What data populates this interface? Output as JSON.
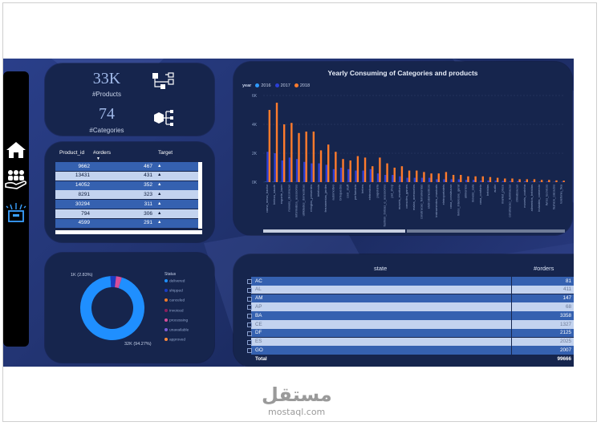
{
  "kpis": {
    "products_value": "33K",
    "products_label": "#Products",
    "categories_value": "74",
    "categories_label": "#Categories"
  },
  "nav_icons": [
    "home-icon",
    "users-hand-icon",
    "box-icon"
  ],
  "product_table": {
    "headers": [
      "Product_id",
      "#orders",
      "Target"
    ],
    "rows": [
      {
        "id": "9662",
        "orders": "467",
        "target": "▲"
      },
      {
        "id": "13431",
        "orders": "431",
        "target": "▲"
      },
      {
        "id": "14052",
        "orders": "352",
        "target": "▲"
      },
      {
        "id": "8291",
        "orders": "323",
        "target": "▲"
      },
      {
        "id": "30294",
        "orders": "311",
        "target": "▲"
      },
      {
        "id": "794",
        "orders": "306",
        "target": "▲"
      },
      {
        "id": "4599",
        "orders": "291",
        "target": "▲"
      }
    ]
  },
  "donut": {
    "label_small": "1K (2.83%)",
    "label_large": "32K (94.27%)",
    "status_title": "Status",
    "statuses": [
      {
        "name": "delivered",
        "color": "#1f8fff"
      },
      {
        "name": "shipped",
        "color": "#1a3cc2"
      },
      {
        "name": "canceled",
        "color": "#f07a2a"
      },
      {
        "name": "invoiced",
        "color": "#8a1f5c"
      },
      {
        "name": "processing",
        "color": "#d64e9a"
      },
      {
        "name": "unavailable",
        "color": "#7a5cd6"
      },
      {
        "name": "approved",
        "color": "#ff8a3a"
      }
    ]
  },
  "chart_data": {
    "type": "bar",
    "title": "Yearly Consuming of Categories and products",
    "legend_title": "year",
    "legend_position": "top-left",
    "colors": {
      "2016": "#2e9bff",
      "2017": "#2b3fd6",
      "2018": "#ff7b2c"
    },
    "y_ticks": [
      "6K",
      "4K",
      "2K",
      "0K"
    ],
    "ylim": [
      0,
      6000
    ],
    "categories": [
      "cama_mesa_banho",
      "beleza_saude",
      "esporte_lazer",
      "moveis_decoracao",
      "informatica_acessorios",
      "utilidades_domesticas",
      "relogios_presentes",
      "telefonia",
      "ferramentas_jardim",
      "automotivo",
      "brinquedos",
      "cool_stuff",
      "perfumaria",
      "bebes",
      "eletronicos",
      "papelaria",
      "fashion_bolsas_e_acessorios",
      "pet_shop",
      "moveis_escritorio",
      "consoles_games",
      "malas_acessorios",
      "construcao_ferramentas",
      "eletrodomesticos",
      "instrumentos_musicais",
      "eletroportateis",
      "casa_construcao",
      "livros_interesse_geral",
      "alimentos",
      "moveis_sala",
      "casa_conforto",
      "bebidas",
      "audio",
      "market_place",
      "construcao_iluminacao",
      "climatizacao",
      "moveis_cozinha",
      "alimentos_bebidas",
      "industria_comercio",
      "livros_tecnicos",
      "fashion_calcados",
      "telefonia_fixa"
    ],
    "series": [
      {
        "name": "2016",
        "values": [
          20,
          15,
          10,
          15,
          10,
          5,
          5,
          5,
          5,
          5,
          5,
          5,
          5,
          5,
          5,
          5,
          5,
          0,
          5,
          0,
          0,
          0,
          0,
          0,
          0,
          0,
          0,
          0,
          0,
          0,
          0,
          0,
          0,
          0,
          0,
          0,
          0,
          0,
          0,
          0,
          0
        ]
      },
      {
        "name": "2017",
        "values": [
          2100,
          2000,
          1500,
          1700,
          1600,
          1400,
          1300,
          1300,
          1200,
          900,
          1000,
          900,
          800,
          800,
          900,
          600,
          500,
          500,
          400,
          300,
          300,
          300,
          300,
          200,
          200,
          200,
          200,
          150,
          150,
          100,
          100,
          100,
          80,
          80,
          70,
          60,
          50,
          40,
          40,
          30,
          30
        ]
      },
      {
        "name": "2018",
        "values": [
          5000,
          5500,
          4000,
          4100,
          3400,
          3500,
          3500,
          2200,
          2600,
          2100,
          1600,
          1500,
          1800,
          1700,
          1100,
          1700,
          1300,
          1000,
          1100,
          800,
          800,
          700,
          600,
          600,
          700,
          500,
          500,
          400,
          400,
          400,
          350,
          300,
          250,
          250,
          200,
          200,
          200,
          150,
          150,
          120,
          100
        ]
      }
    ]
  },
  "state_table": {
    "headers": [
      "state",
      "#orders"
    ],
    "rows": [
      {
        "state": "AC",
        "orders": "81"
      },
      {
        "state": "AL",
        "orders": "411"
      },
      {
        "state": "AM",
        "orders": "147"
      },
      {
        "state": "AP",
        "orders": "68"
      },
      {
        "state": "BA",
        "orders": "3358"
      },
      {
        "state": "CE",
        "orders": "1327"
      },
      {
        "state": "DF",
        "orders": "2125"
      },
      {
        "state": "ES",
        "orders": "2025"
      },
      {
        "state": "GO",
        "orders": "2007"
      }
    ],
    "total_label": "Total",
    "total_value": "99666"
  },
  "watermark": {
    "arabic": "مستقل",
    "latin": "mostaql.com"
  }
}
